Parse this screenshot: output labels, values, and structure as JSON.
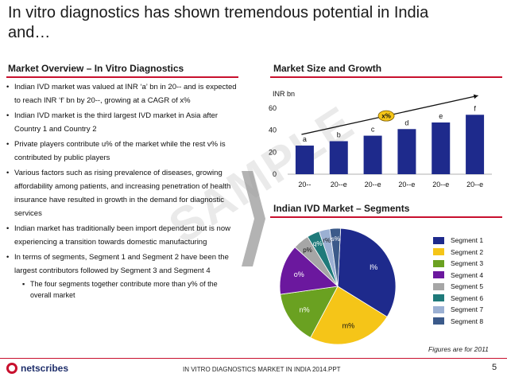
{
  "title": {
    "line1": "In vitro diagnostics has shown tremendous potential in India",
    "line2": "and…"
  },
  "left_section": {
    "heading": "Market Overview – In Vitro Diagnostics",
    "bullets": [
      "Indian IVD market was valued at INR ‘a’ bn in 20-- and is expected to reach INR ‘f’ bn by 20--, growing at a CAGR of x%",
      "Indian IVD market is the third largest IVD market in Asia after Country 1 and Country 2",
      "Private players contribute u% of the market while the rest v% is contributed by public players",
      "Various factors such as rising prevalence of diseases, growing affordability among patients, and increasing penetration of health insurance have resulted in growth in the demand for diagnostic services",
      "Indian market has traditionally been import dependent but is now experiencing a transition towards domestic manufacturing",
      "In terms of segments, Segment 1 and Segment 2 have been the largest contributors followed by Segment 3 and Segment 4"
    ],
    "sub_bullet": "The four segments together contribute more than y% of the overall market"
  },
  "watermark": "SAMPLE",
  "bar_section": {
    "heading": "Market Size and Growth"
  },
  "pie_section": {
    "heading": "Indian IVD Market – Segments",
    "note": "Figures are for 2011"
  },
  "chart_data": [
    {
      "type": "bar",
      "ylabel": "INR bn",
      "ylim": [
        0,
        60
      ],
      "yticks": [
        "0",
        "20",
        "40",
        "60"
      ],
      "categories": [
        "20--",
        "20--e",
        "20--e",
        "20--e",
        "20--e",
        "20--e"
      ],
      "values": [
        26,
        30,
        35,
        41,
        47,
        54
      ],
      "data_labels": [
        "a",
        "b",
        "c",
        "d",
        "e",
        "f"
      ],
      "cagr_label": "x%",
      "bar_color": "#1e2a8c",
      "grid": false
    },
    {
      "type": "pie",
      "legend_position": "right",
      "slices": [
        {
          "name": "Segment 1",
          "label": "l%",
          "value": 33,
          "color": "#1e2a8c"
        },
        {
          "name": "Segment 2",
          "label": "m%",
          "value": 24,
          "color": "#f5c518"
        },
        {
          "name": "Segment 3",
          "label": "n%",
          "value": 15,
          "color": "#6aa121"
        },
        {
          "name": "Segment 4",
          "label": "o%",
          "value": 14,
          "color": "#6b189e"
        },
        {
          "name": "Segment 5",
          "label": "p%",
          "value": 4.5,
          "color": "#a6a6a6"
        },
        {
          "name": "Segment 6",
          "label": "q%",
          "value": 3.5,
          "color": "#1f7a7a"
        },
        {
          "name": "Segment 7",
          "label": "r%",
          "value": 3,
          "color": "#9bb0d3"
        },
        {
          "name": "Segment 8",
          "label": "s%",
          "value": 3,
          "color": "#3b5a8a"
        }
      ]
    }
  ],
  "footer": {
    "logo": "netscribes",
    "text": "IN VITRO DIAGNOSTICS MARKET IN INDIA 2014.PPT",
    "page": "5"
  }
}
